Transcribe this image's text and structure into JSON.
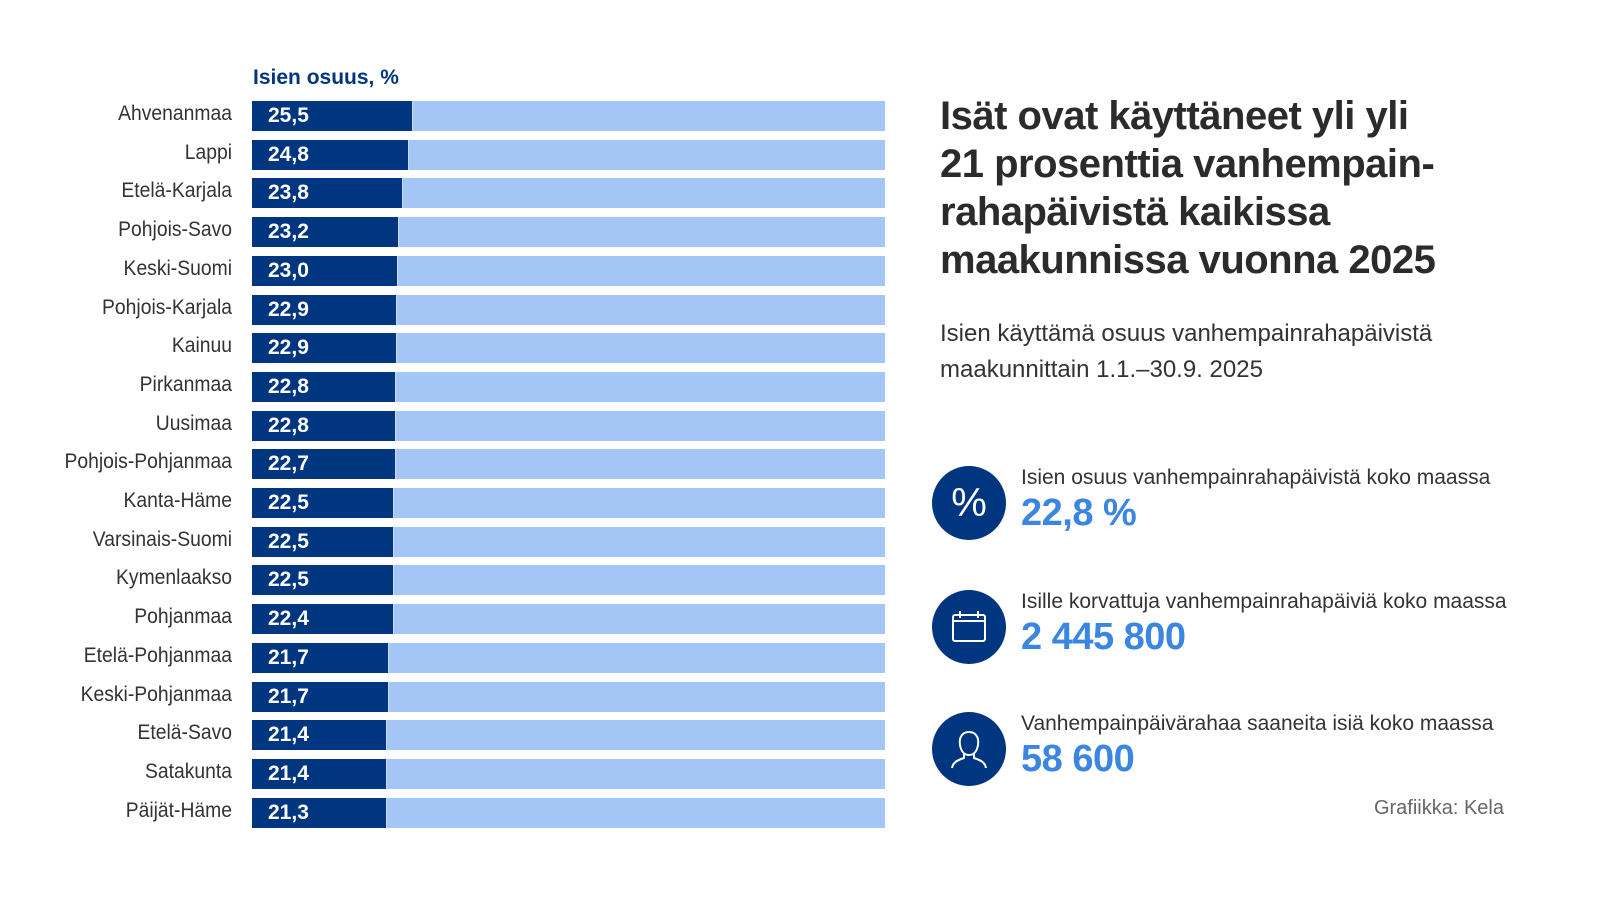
{
  "chart_data": {
    "type": "bar",
    "orientation": "horizontal",
    "series_title": "Isien osuus, %",
    "categories": [
      "Ahvenanmaa",
      "Lappi",
      "Etelä-Karjala",
      "Pohjois-Savo",
      "Keski-Suomi",
      "Pohjois-Karjala",
      "Kainuu",
      "Pirkanmaa",
      "Uusimaa",
      "Pohjois-Pohjanmaa",
      "Kanta-Häme",
      "Varsinais-Suomi",
      "Kymenlaakso",
      "Pohjanmaa",
      "Etelä-Pohjanmaa",
      "Keski-Pohjanmaa",
      "Etelä-Savo",
      "Satakunta",
      "Päijät-Häme"
    ],
    "values": [
      25.5,
      24.8,
      23.8,
      23.2,
      23.0,
      22.9,
      22.9,
      22.8,
      22.8,
      22.7,
      22.5,
      22.5,
      22.5,
      22.4,
      21.7,
      21.7,
      21.4,
      21.4,
      21.3
    ],
    "value_labels": [
      "25,5",
      "24,8",
      "23,8",
      "23,2",
      "23,0",
      "22,9",
      "22,9",
      "22,8",
      "22,8",
      "22,7",
      "22,5",
      "22,5",
      "22,5",
      "22,4",
      "21,7",
      "21,7",
      "21,4",
      "21,4",
      "21,3"
    ],
    "xlim": [
      0,
      100
    ],
    "title": "Isät ovat käyttäneet yli yli 21 prosenttia vanhempain-rahapäivistä kaikissa maakunnissa vuonna 2025",
    "subtitle": "Isien käyttämä osuus vanhempainrahapäivistä maakunnittain 1.1.–30.9. 2025",
    "xlabel": "",
    "ylabel": "",
    "grid": false,
    "colors": {
      "value": "#003580",
      "remainder": "#a4c6f7"
    }
  },
  "header": {
    "title_lines": [
      "Isät ovat käyttäneet yli yli",
      "21 prosenttia vanhempain-",
      "rahapäivistä kaikissa",
      "maakunnissa vuonna 2025"
    ],
    "subtitle_lines": [
      "Isien käyttämä osuus vanhempainrahapäivistä",
      "maakunnittain 1.1.–30.9. 2025"
    ]
  },
  "kpis": [
    {
      "icon": "percent-icon",
      "label": "Isien osuus vanhempainrahapäivistä koko maassa",
      "value": "22,8 %"
    },
    {
      "icon": "calendar-icon",
      "label": "Isille korvattuja vanhempainrahapäiviä koko maassa",
      "value": "2 445 800"
    },
    {
      "icon": "person-icon",
      "label": "Vanhempainpäivärahaa saaneita isiä koko maassa",
      "value": "58 600"
    }
  ],
  "credit": "Grafiikka: Kela",
  "colors": {
    "brand_dark": "#003580",
    "accent": "#3a86e0",
    "bar_light": "#a4c6f7"
  }
}
